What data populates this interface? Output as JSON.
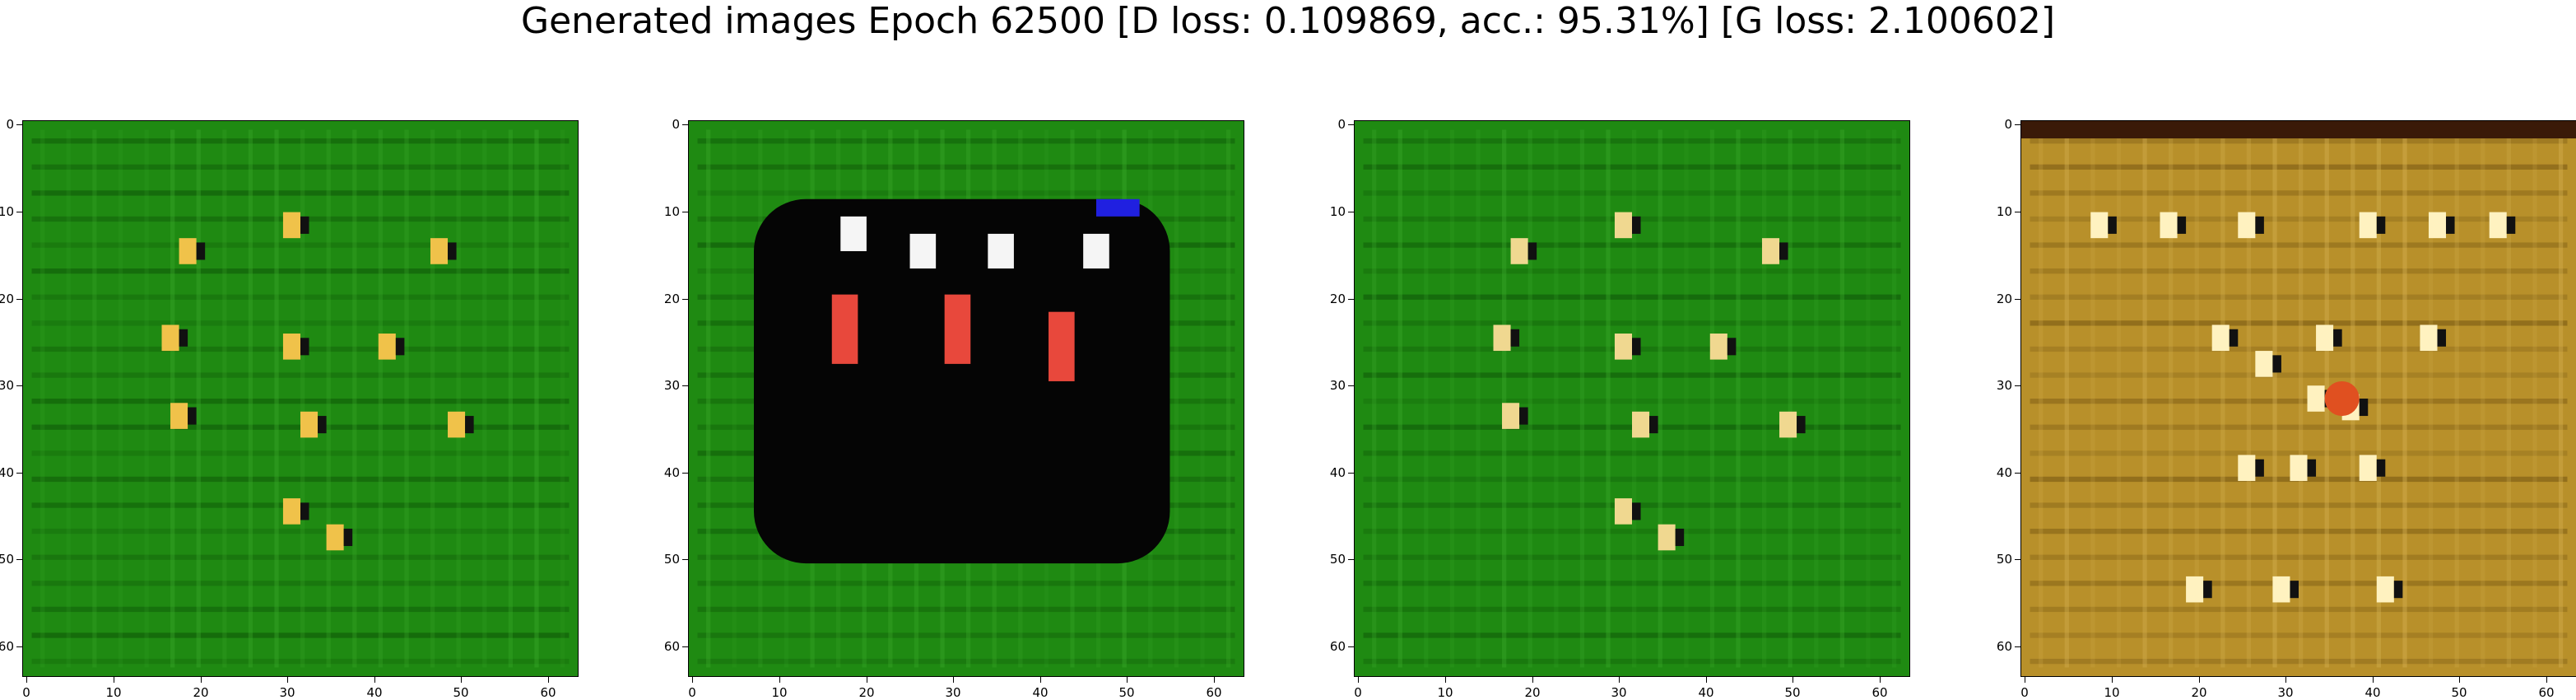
{
  "figure": {
    "title": "Generated images Epoch 62500 [D loss: 0.109869, acc.: 95.31%] [G loss: 2.100602]"
  },
  "axes": {
    "xticks": [
      "0",
      "10",
      "20",
      "30",
      "40",
      "50",
      "60"
    ],
    "yticks": [
      "0",
      "10",
      "20",
      "30",
      "40",
      "50",
      "60"
    ],
    "range": [
      0,
      64
    ]
  },
  "panels": [
    {
      "name": "green-grid-sample-1",
      "base_color": "#1f8a12",
      "accent_color": "#f0c24a"
    },
    {
      "name": "black-blob-sample",
      "base_color": "#1f8a12",
      "blob_color": "#050505",
      "accent_color": "#e8483c"
    },
    {
      "name": "green-grid-sample-2",
      "base_color": "#1f8a12",
      "accent_color": "#f0d890"
    },
    {
      "name": "golden-frame-sample",
      "base_color": "#b8902a",
      "accent_color": "#fff2c0"
    }
  ]
}
